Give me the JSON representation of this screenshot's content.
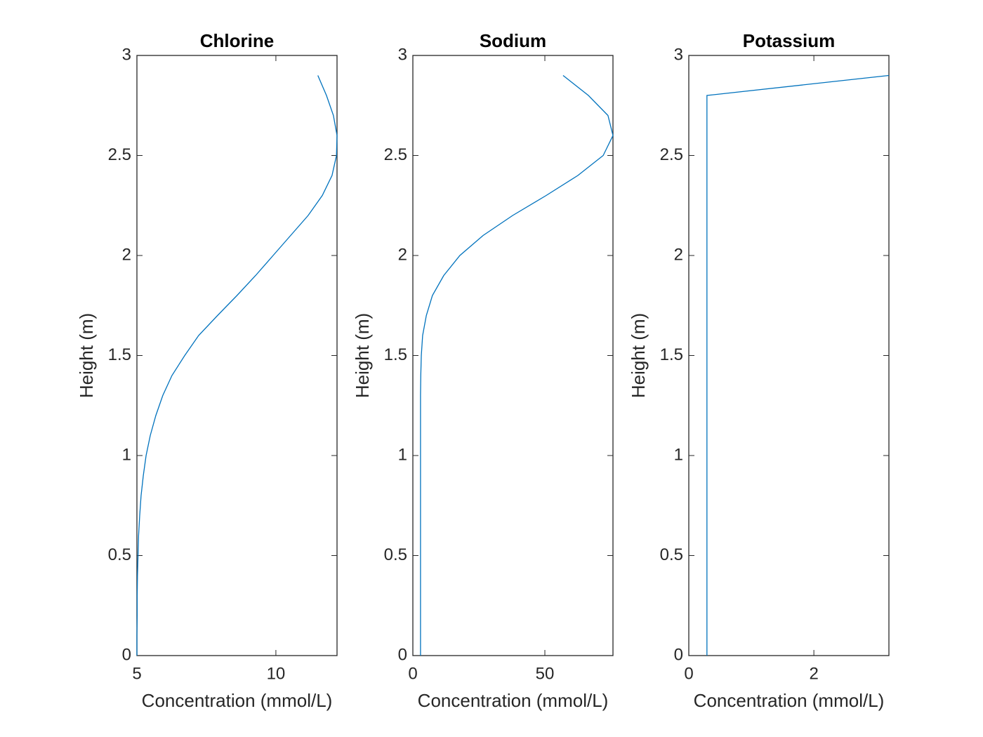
{
  "chart_data": [
    {
      "type": "line",
      "title": "Chlorine",
      "xlabel": "Concentration (mmol/L)",
      "ylabel": "Height (m)",
      "color": "#0072bd",
      "x": [
        5.0,
        5.0,
        5.01,
        5.01,
        5.02,
        5.04,
        5.06,
        5.1,
        5.15,
        5.23,
        5.33,
        5.48,
        5.68,
        5.93,
        6.26,
        6.72,
        7.22,
        7.9,
        8.6,
        9.27,
        9.9,
        10.53,
        11.16,
        11.67,
        12.02,
        12.18,
        12.2,
        12.07,
        11.82,
        11.51
      ],
      "values": [
        0,
        0.1,
        0.2,
        0.3,
        0.4,
        0.5,
        0.6,
        0.7,
        0.8,
        0.9,
        1.0,
        1.1,
        1.2,
        1.3,
        1.4,
        1.5,
        1.6,
        1.7,
        1.8,
        1.9,
        2.0,
        2.1,
        2.2,
        2.3,
        2.4,
        2.5,
        2.6,
        2.7,
        2.8,
        2.9
      ],
      "xlim": [
        5,
        12.2
      ],
      "xticks": [
        5,
        10
      ],
      "ylim": [
        0,
        3
      ],
      "yticks": [
        0,
        0.5,
        1,
        1.5,
        2,
        2.5,
        3
      ]
    },
    {
      "type": "line",
      "title": "Sodium",
      "xlabel": "Concentration (mmol/L)",
      "ylabel": "Height (m)",
      "color": "#0072bd",
      "x": [
        2.9,
        2.9,
        2.9,
        2.9,
        2.9,
        2.9,
        2.9,
        2.9,
        2.9,
        2.9,
        2.9,
        2.9,
        2.9,
        2.9,
        3.0,
        3.2,
        3.7,
        5.1,
        7.4,
        11.7,
        17.8,
        26.6,
        37.8,
        50.5,
        62.5,
        72.1,
        75.8,
        73.9,
        66.5,
        56.9
      ],
      "values": [
        0,
        0.1,
        0.2,
        0.3,
        0.4,
        0.5,
        0.6,
        0.7,
        0.8,
        0.9,
        1.0,
        1.1,
        1.2,
        1.3,
        1.4,
        1.5,
        1.6,
        1.7,
        1.8,
        1.9,
        2.0,
        2.1,
        2.2,
        2.3,
        2.4,
        2.5,
        2.6,
        2.7,
        2.8,
        2.9
      ],
      "xlim": [
        0,
        75.8
      ],
      "xticks": [
        0,
        50
      ],
      "ylim": [
        0,
        3
      ],
      "yticks": [
        0,
        0.5,
        1,
        1.5,
        2,
        2.5,
        3
      ]
    },
    {
      "type": "line",
      "title": "Potassium",
      "xlabel": "Concentration (mmol/L)",
      "ylabel": "Height (m)",
      "color": "#0072bd",
      "x": [
        0.29,
        0.29,
        0.29,
        0.29,
        0.29,
        0.29,
        0.29,
        0.29,
        0.29,
        0.29,
        0.29,
        0.29,
        0.29,
        0.29,
        0.29,
        0.29,
        0.29,
        0.29,
        0.29,
        0.29,
        0.29,
        0.29,
        0.29,
        0.29,
        0.29,
        0.29,
        0.29,
        0.29,
        0.29,
        3.2
      ],
      "values": [
        0,
        0.1,
        0.2,
        0.3,
        0.4,
        0.5,
        0.6,
        0.7,
        0.8,
        0.9,
        1.0,
        1.1,
        1.2,
        1.3,
        1.4,
        1.5,
        1.6,
        1.7,
        1.8,
        1.9,
        2.0,
        2.1,
        2.2,
        2.3,
        2.4,
        2.5,
        2.6,
        2.7,
        2.8,
        2.9
      ],
      "xlim": [
        0,
        3.2
      ],
      "xticks": [
        0,
        2
      ],
      "ylim": [
        0,
        3
      ],
      "yticks": [
        0,
        0.5,
        1,
        1.5,
        2,
        2.5,
        3
      ]
    }
  ]
}
